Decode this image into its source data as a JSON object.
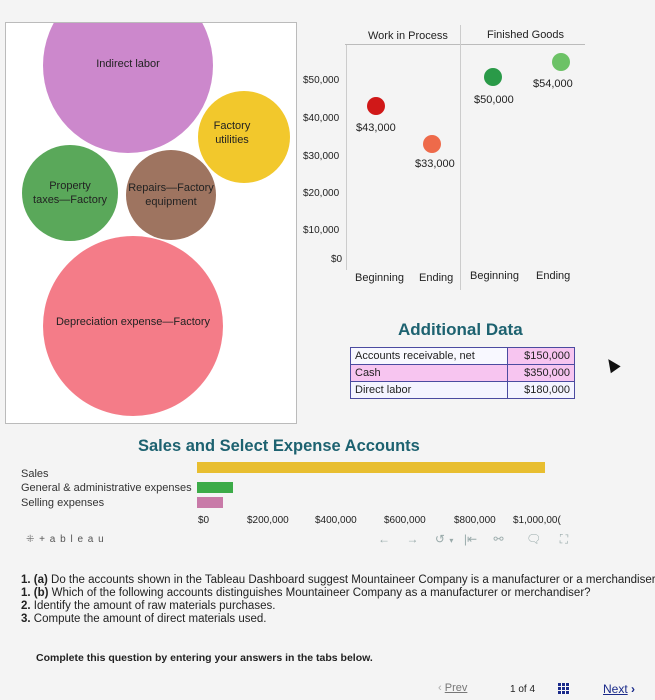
{
  "bubbles": {
    "indirect_labor": "Indirect labor",
    "factory_utilities": [
      "Factory",
      "utilities"
    ],
    "property_taxes": [
      "Property",
      "taxes—Factory"
    ],
    "repairs": [
      "Repairs—Factory",
      "equipment"
    ],
    "depreciation": "Depreciation expense—Factory",
    "colors": {
      "purple": "#cc88cc",
      "yellow": "#f2c82c",
      "green": "#5aa85a",
      "brown": "#9e7460",
      "pink": "#f47c88"
    }
  },
  "inventory_chart": {
    "col_wip": "Work in Process",
    "col_fg": "Finished Goods",
    "y_ticks": [
      "$50,000",
      "$40,000",
      "$30,000",
      "$20,000",
      "$10,000",
      "$0"
    ],
    "x_labels": [
      "Beginning",
      "Ending",
      "Beginning",
      "Ending"
    ],
    "points": [
      {
        "label": "$43,000",
        "color": "#d01818"
      },
      {
        "label": "$33,000",
        "color": "#ee6a4a"
      },
      {
        "label": "$50,000",
        "color": "#2a9a48"
      },
      {
        "label": "$54,000",
        "color": "#6cc266"
      }
    ]
  },
  "additional_data": {
    "title": "Additional Data",
    "rows": [
      {
        "label": "Accounts receivable, net",
        "value": "$150,000"
      },
      {
        "label": "Cash",
        "value": "$350,000"
      },
      {
        "label": "Direct labor",
        "value": "$180,000"
      }
    ]
  },
  "sales_chart": {
    "title": "Sales and Select Expense Accounts",
    "rows": [
      "Sales",
      "General & administrative expenses",
      "Selling expenses"
    ],
    "x_ticks": [
      "$0",
      "$200,000",
      "$400,000",
      "$600,000",
      "$800,000",
      "$1,000,00("
    ],
    "colors": {
      "sales": "#e8be30",
      "ga": "#3cab48",
      "selling": "#c87aa8"
    }
  },
  "tableau": {
    "logo_text": "+ a b l e a u"
  },
  "questions": [
    {
      "num": "1. (a)",
      "text": " Do the accounts shown in the Tableau Dashboard suggest Mountaineer Company is a manufacturer or a merchandiser"
    },
    {
      "num": "1. (b)",
      "text": " Which of the following accounts distinguishes Mountaineer Company as a manufacturer or merchandiser?"
    },
    {
      "num": "2.",
      "text": " Identify the amount of raw materials purchases."
    },
    {
      "num": "3.",
      "text": " Compute the amount of direct materials used."
    }
  ],
  "instruction": "Complete this question by entering your answers in the tabs below.",
  "pager": {
    "prev": "Prev",
    "current": "1",
    "of_label": "of",
    "total": "4",
    "next": "Next"
  }
}
